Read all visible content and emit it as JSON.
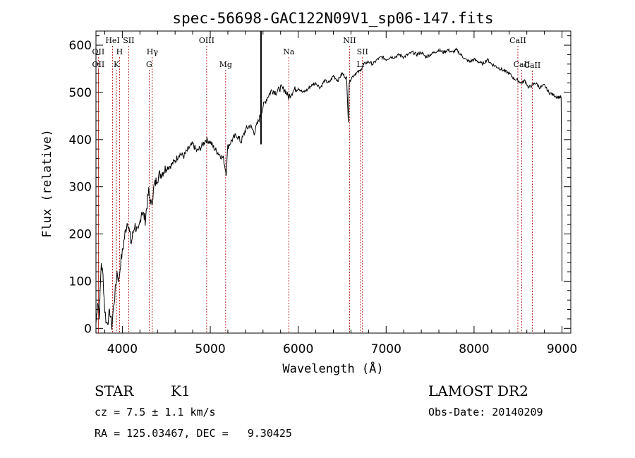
{
  "chart_data": {
    "type": "line",
    "title": "spec-56698-GAC122N09V1_sp06-147.fits",
    "xlabel": "Wavelength (Å)",
    "ylabel": "Flux (relative)",
    "xlim": [
      3700,
      9100
    ],
    "ylim": [
      -10,
      630
    ],
    "xticks": [
      4000,
      5000,
      6000,
      7000,
      8000,
      9000
    ],
    "yticks": [
      0,
      100,
      200,
      300,
      400,
      500,
      600
    ],
    "grid": false,
    "series": [
      {
        "x": [
          3700,
          3720,
          3740,
          3760,
          3780,
          3800,
          3820,
          3840,
          3860,
          3880,
          3900,
          3920,
          3940,
          3960,
          3980,
          4000,
          4030,
          4060,
          4100,
          4140,
          4180,
          4220,
          4260,
          4300,
          4330,
          4360,
          4400,
          4450,
          4500,
          4550,
          4600,
          4650,
          4700,
          4750,
          4800,
          4850,
          4900,
          4950,
          5000,
          5050,
          5100,
          5150,
          5180,
          5200,
          5250,
          5300,
          5350,
          5400,
          5450,
          5500,
          5550,
          5600,
          5650,
          5700,
          5750,
          5800,
          5850,
          5890,
          5950,
          6000,
          6050,
          6100,
          6150,
          6200,
          6250,
          6300,
          6350,
          6400,
          6450,
          6500,
          6550,
          6570,
          6580,
          6600,
          6650,
          6700,
          6750,
          6800,
          6850,
          6900,
          6950,
          7000,
          7050,
          7100,
          7150,
          7200,
          7250,
          7300,
          7350,
          7400,
          7450,
          7500,
          7550,
          7600,
          7650,
          7700,
          7750,
          7800,
          7850,
          7900,
          7950,
          8000,
          8050,
          8100,
          8150,
          8200,
          8250,
          8300,
          8350,
          8400,
          8450,
          8500,
          8540,
          8580,
          8620,
          8660,
          8700,
          8750,
          8800,
          8850,
          8900,
          8950,
          8990,
          9000
        ],
        "y": [
          10,
          60,
          30,
          140,
          110,
          40,
          10,
          20,
          35,
          5,
          45,
          80,
          120,
          100,
          140,
          160,
          200,
          230,
          180,
          220,
          200,
          250,
          230,
          290,
          260,
          300,
          320,
          330,
          340,
          345,
          355,
          370,
          365,
          380,
          390,
          375,
          385,
          400,
          395,
          380,
          370,
          360,
          330,
          385,
          400,
          410,
          395,
          420,
          430,
          415,
          440,
          470,
          490,
          505,
          500,
          510,
          505,
          490,
          505,
          510,
          500,
          505,
          515,
          520,
          510,
          525,
          520,
          535,
          525,
          540,
          530,
          440,
          520,
          530,
          540,
          545,
          560,
          565,
          560,
          570,
          575,
          570,
          575,
          575,
          580,
          575,
          580,
          585,
          580,
          585,
          575,
          580,
          585,
          590,
          585,
          590,
          585,
          590,
          580,
          570,
          565,
          570,
          565,
          560,
          570,
          560,
          555,
          550,
          545,
          540,
          530,
          525,
          520,
          525,
          510,
          515,
          520,
          510,
          515,
          500,
          495,
          490,
          490,
          230
        ]
      }
    ],
    "spectral_lines": [
      {
        "label": "OII",
        "x": 3727,
        "row": 2
      },
      {
        "label": "OII",
        "x": 3727,
        "row": 3
      },
      {
        "label": "HeI",
        "x": 3889,
        "row": 1
      },
      {
        "label": "H",
        "x": 3968,
        "row": 2
      },
      {
        "label": "K",
        "x": 3934,
        "row": 3
      },
      {
        "label": "SII",
        "x": 4072,
        "row": 1
      },
      {
        "label": "Hγ",
        "x": 4341,
        "row": 2
      },
      {
        "label": "G",
        "x": 4305,
        "row": 3
      },
      {
        "label": "OIII",
        "x": 4959,
        "row": 1
      },
      {
        "label": "Mg",
        "x": 5175,
        "row": 3
      },
      {
        "label": "Na",
        "x": 5893,
        "row": 2
      },
      {
        "label": "NII",
        "x": 6584,
        "row": 1
      },
      {
        "label": "Li",
        "x": 6708,
        "row": 3
      },
      {
        "label": "SII",
        "x": 6731,
        "row": 2
      },
      {
        "label": "CaII",
        "x": 8498,
        "row": 1
      },
      {
        "label": "CaII",
        "x": 8542,
        "row": 3
      },
      {
        "label": "CaII",
        "x": 8662,
        "row": 0
      }
    ],
    "marker_x": 5577
  },
  "info": {
    "class_label": "STAR",
    "subclass_label": "K1",
    "survey_label": "LAMOST DR2",
    "cz_line": "cz = 7.5 ± 1.1 km/s",
    "obs_date_line": "Obs-Date: 20140209",
    "radec_line": "RA = 125.03467, DEC =   9.30425"
  }
}
